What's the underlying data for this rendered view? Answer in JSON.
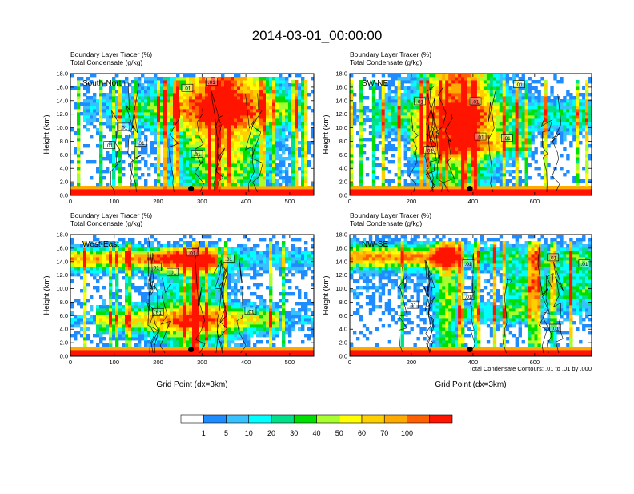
{
  "page": {
    "title": "2014-03-01_00:00:00"
  },
  "colorbar": {
    "levels": [
      "1",
      "5",
      "10",
      "20",
      "30",
      "40",
      "50",
      "60",
      "70",
      "100"
    ],
    "colors": [
      "#ffffff",
      "#1e8cff",
      "#38c0ff",
      "#00ffff",
      "#00e08a",
      "#00e000",
      "#a8ff30",
      "#ffff00",
      "#ffd000",
      "#ffaa00",
      "#ff6000",
      "#ff1400"
    ]
  },
  "footnote": "Total Condensate Contours: .01 to .01 by .000",
  "chart_data": [
    {
      "type": "heatmap",
      "subtitle_line1": "Boundary Layer Tracer    (%)",
      "subtitle_line2": "Total Condensate    (g/kg)",
      "panel_label": "South-North",
      "ylabel": "Height (km)",
      "xlabel": "",
      "xlim": [
        0,
        555
      ],
      "ylim": [
        0,
        18
      ],
      "xticks": [
        "0",
        "100",
        "200",
        "300",
        "400",
        "500"
      ],
      "yticks": [
        "0.0",
        "2.0",
        "4.0",
        "6.0",
        "8.0",
        "10.0",
        "12.0",
        "14.0",
        "16.0",
        "18.0"
      ],
      "contour_labels": [
        ".01",
        ".01",
        ".01",
        ".01",
        ".01",
        ".01"
      ],
      "marker": {
        "x": 275,
        "y": 1.0
      }
    },
    {
      "type": "heatmap",
      "subtitle_line1": "Boundary Layer Tracer    (%)",
      "subtitle_line2": "Total Condensate    (g/kg)",
      "panel_label": "SW-NE",
      "ylabel": "Height (km)",
      "xlabel": "",
      "xlim": [
        0,
        785
      ],
      "ylim": [
        0,
        18
      ],
      "xticks": [
        "0",
        "200",
        "400",
        "600"
      ],
      "yticks": [
        "0.0",
        "2.0",
        "4.0",
        "6.0",
        "8.0",
        "10.0",
        "12.0",
        "14.0",
        "16.0",
        "18.0"
      ],
      "contour_labels": [
        ".01",
        ".01",
        ".01",
        ".01",
        ".01",
        ".01"
      ],
      "marker": {
        "x": 390,
        "y": 1.0
      }
    },
    {
      "type": "heatmap",
      "subtitle_line1": "Boundary Layer Tracer    (%)",
      "subtitle_line2": "Total Condensate    (g/kg)",
      "panel_label": "West-East",
      "ylabel": "Height (km)",
      "xlabel": "Grid Point (dx=3km)",
      "xlim": [
        0,
        555
      ],
      "ylim": [
        0,
        18
      ],
      "xticks": [
        "0",
        "100",
        "200",
        "300",
        "400",
        "500"
      ],
      "yticks": [
        "0.0",
        "2.0",
        "4.0",
        "6.0",
        "8.0",
        "10.0",
        "12.0",
        "14.0",
        "16.0",
        "18.0"
      ],
      "contour_labels": [
        ".01",
        ".01",
        ".01",
        ".01",
        ".01",
        ".01"
      ],
      "marker": {
        "x": 275,
        "y": 1.0
      }
    },
    {
      "type": "heatmap",
      "subtitle_line1": "Boundary Layer Tracer    (%)",
      "subtitle_line2": "Total Condensate    (g/kg)",
      "panel_label": "NW-SE",
      "ylabel": "Height (km)",
      "xlabel": "Grid Point (dx=3km)",
      "xlim": [
        0,
        785
      ],
      "ylim": [
        0,
        18
      ],
      "xticks": [
        "0",
        "200",
        "400",
        "600"
      ],
      "yticks": [
        "0.0",
        "2.0",
        "4.0",
        "6.0",
        "8.0",
        "10.0",
        "12.0",
        "14.0",
        "16.0",
        "18.0"
      ],
      "contour_labels": [
        ".01",
        ".01",
        ".01",
        ".01",
        ".01",
        ".01"
      ],
      "marker": {
        "x": 390,
        "y": 1.0
      }
    }
  ]
}
